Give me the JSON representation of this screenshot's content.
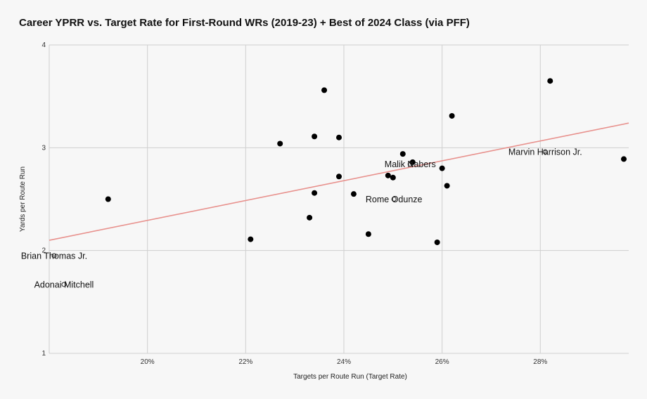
{
  "title": "Career YPRR vs. Target Rate for First-Round WRs (2019-23) + Best of 2024 Class (via PFF)",
  "chart_data": {
    "type": "scatter",
    "xlabel": "Targets per Route Run (Target Rate)",
    "ylabel": "Yards per Route Run",
    "xlim": [
      0.18,
      0.298
    ],
    "ylim": [
      1,
      4
    ],
    "x_ticks": [
      {
        "value": 0.2,
        "label": "20%"
      },
      {
        "value": 0.22,
        "label": "22%"
      },
      {
        "value": 0.24,
        "label": "24%"
      },
      {
        "value": 0.26,
        "label": "26%"
      },
      {
        "value": 0.28,
        "label": "28%"
      }
    ],
    "y_ticks": [
      {
        "value": 1,
        "label": "1"
      },
      {
        "value": 2,
        "label": "2"
      },
      {
        "value": 3,
        "label": "3"
      },
      {
        "value": 4,
        "label": "4"
      }
    ],
    "grid": true,
    "trendline": {
      "color": "#e8918d",
      "x": [
        0.18,
        0.298
      ],
      "y": [
        2.1,
        3.24
      ]
    },
    "points": [
      {
        "x": 0.192,
        "y": 2.5
      },
      {
        "x": 0.221,
        "y": 2.11
      },
      {
        "x": 0.227,
        "y": 3.04
      },
      {
        "x": 0.233,
        "y": 2.32
      },
      {
        "x": 0.234,
        "y": 3.11
      },
      {
        "x": 0.234,
        "y": 2.56
      },
      {
        "x": 0.236,
        "y": 3.56
      },
      {
        "x": 0.239,
        "y": 3.1
      },
      {
        "x": 0.239,
        "y": 2.72
      },
      {
        "x": 0.242,
        "y": 2.55
      },
      {
        "x": 0.245,
        "y": 2.16
      },
      {
        "x": 0.249,
        "y": 2.73
      },
      {
        "x": 0.25,
        "y": 2.71
      },
      {
        "x": 0.252,
        "y": 2.94
      },
      {
        "x": 0.254,
        "y": 2.86
      },
      {
        "x": 0.259,
        "y": 2.08
      },
      {
        "x": 0.26,
        "y": 2.8
      },
      {
        "x": 0.261,
        "y": 2.63
      },
      {
        "x": 0.262,
        "y": 3.31
      },
      {
        "x": 0.282,
        "y": 3.65
      },
      {
        "x": 0.297,
        "y": 2.89
      }
    ],
    "labeled_points": [
      {
        "label": "Marvin Harrison Jr.",
        "x": 0.281,
        "y": 2.96
      },
      {
        "label": "Malik Nabers",
        "x": 0.2535,
        "y": 2.84
      },
      {
        "label": "Rome Odunze",
        "x": 0.2502,
        "y": 2.5
      },
      {
        "label": "Brian Thomas Jr.",
        "x": 0.181,
        "y": 1.95
      },
      {
        "label": "Adonai Mitchell",
        "x": 0.183,
        "y": 1.67
      }
    ]
  }
}
